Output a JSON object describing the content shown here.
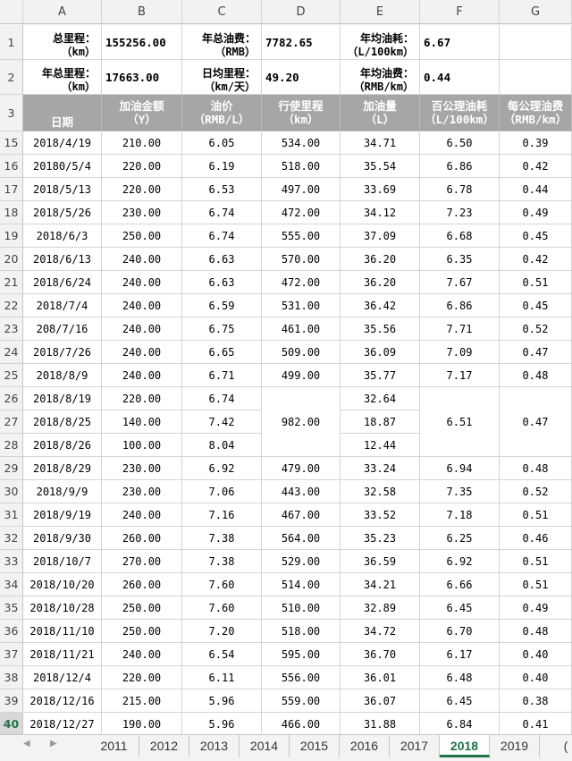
{
  "columns": [
    "A",
    "B",
    "C",
    "D",
    "E",
    "F",
    "G"
  ],
  "summary": {
    "total_km_label": [
      "总里程：",
      "（km）"
    ],
    "total_km_value": "155256.00",
    "year_fuel_cost_label": [
      "年总油费：",
      "（RMB）"
    ],
    "year_fuel_cost_value": "7782.65",
    "avg_consumption_label": [
      "年均油耗：",
      "（L/100km）"
    ],
    "avg_consumption_value": "6.67",
    "year_km_label": [
      "年总里程：",
      "（km）"
    ],
    "year_km_value": "17663.00",
    "daily_km_label": [
      "日均里程：",
      "（km/天）"
    ],
    "daily_km_value": "49.20",
    "avg_cost_label": [
      "年均油费：",
      "（RMB/km）"
    ],
    "avg_cost_value": "0.44"
  },
  "headers": [
    [
      "日期",
      ""
    ],
    [
      "加油金额",
      "（Y）"
    ],
    [
      "油价",
      "（RMB/L）"
    ],
    [
      "行使里程",
      "（km）"
    ],
    [
      "加油量",
      "（L）"
    ],
    [
      "百公理油耗",
      "（L/100km）"
    ],
    [
      "每公理油费",
      "（RMB/km）"
    ]
  ],
  "rows": [
    {
      "n": "15",
      "date": "2018/4/19",
      "amount": "210.00",
      "price": "6.05",
      "km": "534.00",
      "liters": "34.71",
      "per100": "6.50",
      "perkm": "0.39"
    },
    {
      "n": "16",
      "date": "20180/5/4",
      "amount": "220.00",
      "price": "6.19",
      "km": "518.00",
      "liters": "35.54",
      "per100": "6.86",
      "perkm": "0.42"
    },
    {
      "n": "17",
      "date": "2018/5/13",
      "amount": "220.00",
      "price": "6.53",
      "km": "497.00",
      "liters": "33.69",
      "per100": "6.78",
      "perkm": "0.44"
    },
    {
      "n": "18",
      "date": "2018/5/26",
      "amount": "230.00",
      "price": "6.74",
      "km": "472.00",
      "liters": "34.12",
      "per100": "7.23",
      "perkm": "0.49"
    },
    {
      "n": "19",
      "date": "2018/6/3",
      "amount": "250.00",
      "price": "6.74",
      "km": "555.00",
      "liters": "37.09",
      "per100": "6.68",
      "perkm": "0.45"
    },
    {
      "n": "20",
      "date": "2018/6/13",
      "amount": "240.00",
      "price": "6.63",
      "km": "570.00",
      "liters": "36.20",
      "per100": "6.35",
      "perkm": "0.42"
    },
    {
      "n": "21",
      "date": "2018/6/24",
      "amount": "240.00",
      "price": "6.63",
      "km": "472.00",
      "liters": "36.20",
      "per100": "7.67",
      "perkm": "0.51"
    },
    {
      "n": "22",
      "date": "2018/7/4",
      "amount": "240.00",
      "price": "6.59",
      "km": "531.00",
      "liters": "36.42",
      "per100": "6.86",
      "perkm": "0.45"
    },
    {
      "n": "23",
      "date": "208/7/16",
      "amount": "240.00",
      "price": "6.75",
      "km": "461.00",
      "liters": "35.56",
      "per100": "7.71",
      "perkm": "0.52"
    },
    {
      "n": "24",
      "date": "2018/7/26",
      "amount": "240.00",
      "price": "6.65",
      "km": "509.00",
      "liters": "36.09",
      "per100": "7.09",
      "perkm": "0.47"
    },
    {
      "n": "25",
      "date": "2018/8/9",
      "amount": "240.00",
      "price": "6.71",
      "km": "499.00",
      "liters": "35.77",
      "per100": "7.17",
      "perkm": "0.48"
    },
    {
      "n": "26",
      "date": "2018/8/19",
      "amount": "220.00",
      "price": "6.74",
      "km": "982.00",
      "liters": "32.64",
      "per100": "6.51",
      "perkm": "0.47"
    },
    {
      "n": "27",
      "date": "2018/8/25",
      "amount": "140.00",
      "price": "7.42",
      "km": "",
      "liters": "18.87",
      "per100": "",
      "perkm": ""
    },
    {
      "n": "28",
      "date": "2018/8/26",
      "amount": "100.00",
      "price": "8.04",
      "km": "",
      "liters": "12.44",
      "per100": "",
      "perkm": ""
    },
    {
      "n": "29",
      "date": "2018/8/29",
      "amount": "230.00",
      "price": "6.92",
      "km": "479.00",
      "liters": "33.24",
      "per100": "6.94",
      "perkm": "0.48"
    },
    {
      "n": "30",
      "date": "2018/9/9",
      "amount": "230.00",
      "price": "7.06",
      "km": "443.00",
      "liters": "32.58",
      "per100": "7.35",
      "perkm": "0.52"
    },
    {
      "n": "31",
      "date": "2018/9/19",
      "amount": "240.00",
      "price": "7.16",
      "km": "467.00",
      "liters": "33.52",
      "per100": "7.18",
      "perkm": "0.51"
    },
    {
      "n": "32",
      "date": "2018/9/30",
      "amount": "260.00",
      "price": "7.38",
      "km": "564.00",
      "liters": "35.23",
      "per100": "6.25",
      "perkm": "0.46"
    },
    {
      "n": "33",
      "date": "2018/10/7",
      "amount": "270.00",
      "price": "7.38",
      "km": "529.00",
      "liters": "36.59",
      "per100": "6.92",
      "perkm": "0.51"
    },
    {
      "n": "34",
      "date": "2018/10/20",
      "amount": "260.00",
      "price": "7.60",
      "km": "514.00",
      "liters": "34.21",
      "per100": "6.66",
      "perkm": "0.51"
    },
    {
      "n": "35",
      "date": "2018/10/28",
      "amount": "250.00",
      "price": "7.60",
      "km": "510.00",
      "liters": "32.89",
      "per100": "6.45",
      "perkm": "0.49"
    },
    {
      "n": "36",
      "date": "2018/11/10",
      "amount": "250.00",
      "price": "7.20",
      "km": "518.00",
      "liters": "34.72",
      "per100": "6.70",
      "perkm": "0.48"
    },
    {
      "n": "37",
      "date": "2018/11/21",
      "amount": "240.00",
      "price": "6.54",
      "km": "595.00",
      "liters": "36.70",
      "per100": "6.17",
      "perkm": "0.40"
    },
    {
      "n": "38",
      "date": "2018/12/4",
      "amount": "220.00",
      "price": "6.11",
      "km": "556.00",
      "liters": "36.01",
      "per100": "6.48",
      "perkm": "0.40"
    },
    {
      "n": "39",
      "date": "2018/12/16",
      "amount": "215.00",
      "price": "5.96",
      "km": "559.00",
      "liters": "36.07",
      "per100": "6.45",
      "perkm": "0.38"
    },
    {
      "n": "40",
      "date": "2018/12/27",
      "amount": "190.00",
      "price": "5.96",
      "km": "466.00",
      "liters": "31.88",
      "per100": "6.84",
      "perkm": "0.41"
    }
  ],
  "tabs": [
    "2011",
    "2012",
    "2013",
    "2014",
    "2015",
    "2016",
    "2017",
    "2018",
    "2019"
  ],
  "active_tab": "2018",
  "selected_row": "40",
  "accent_color": "#217346"
}
